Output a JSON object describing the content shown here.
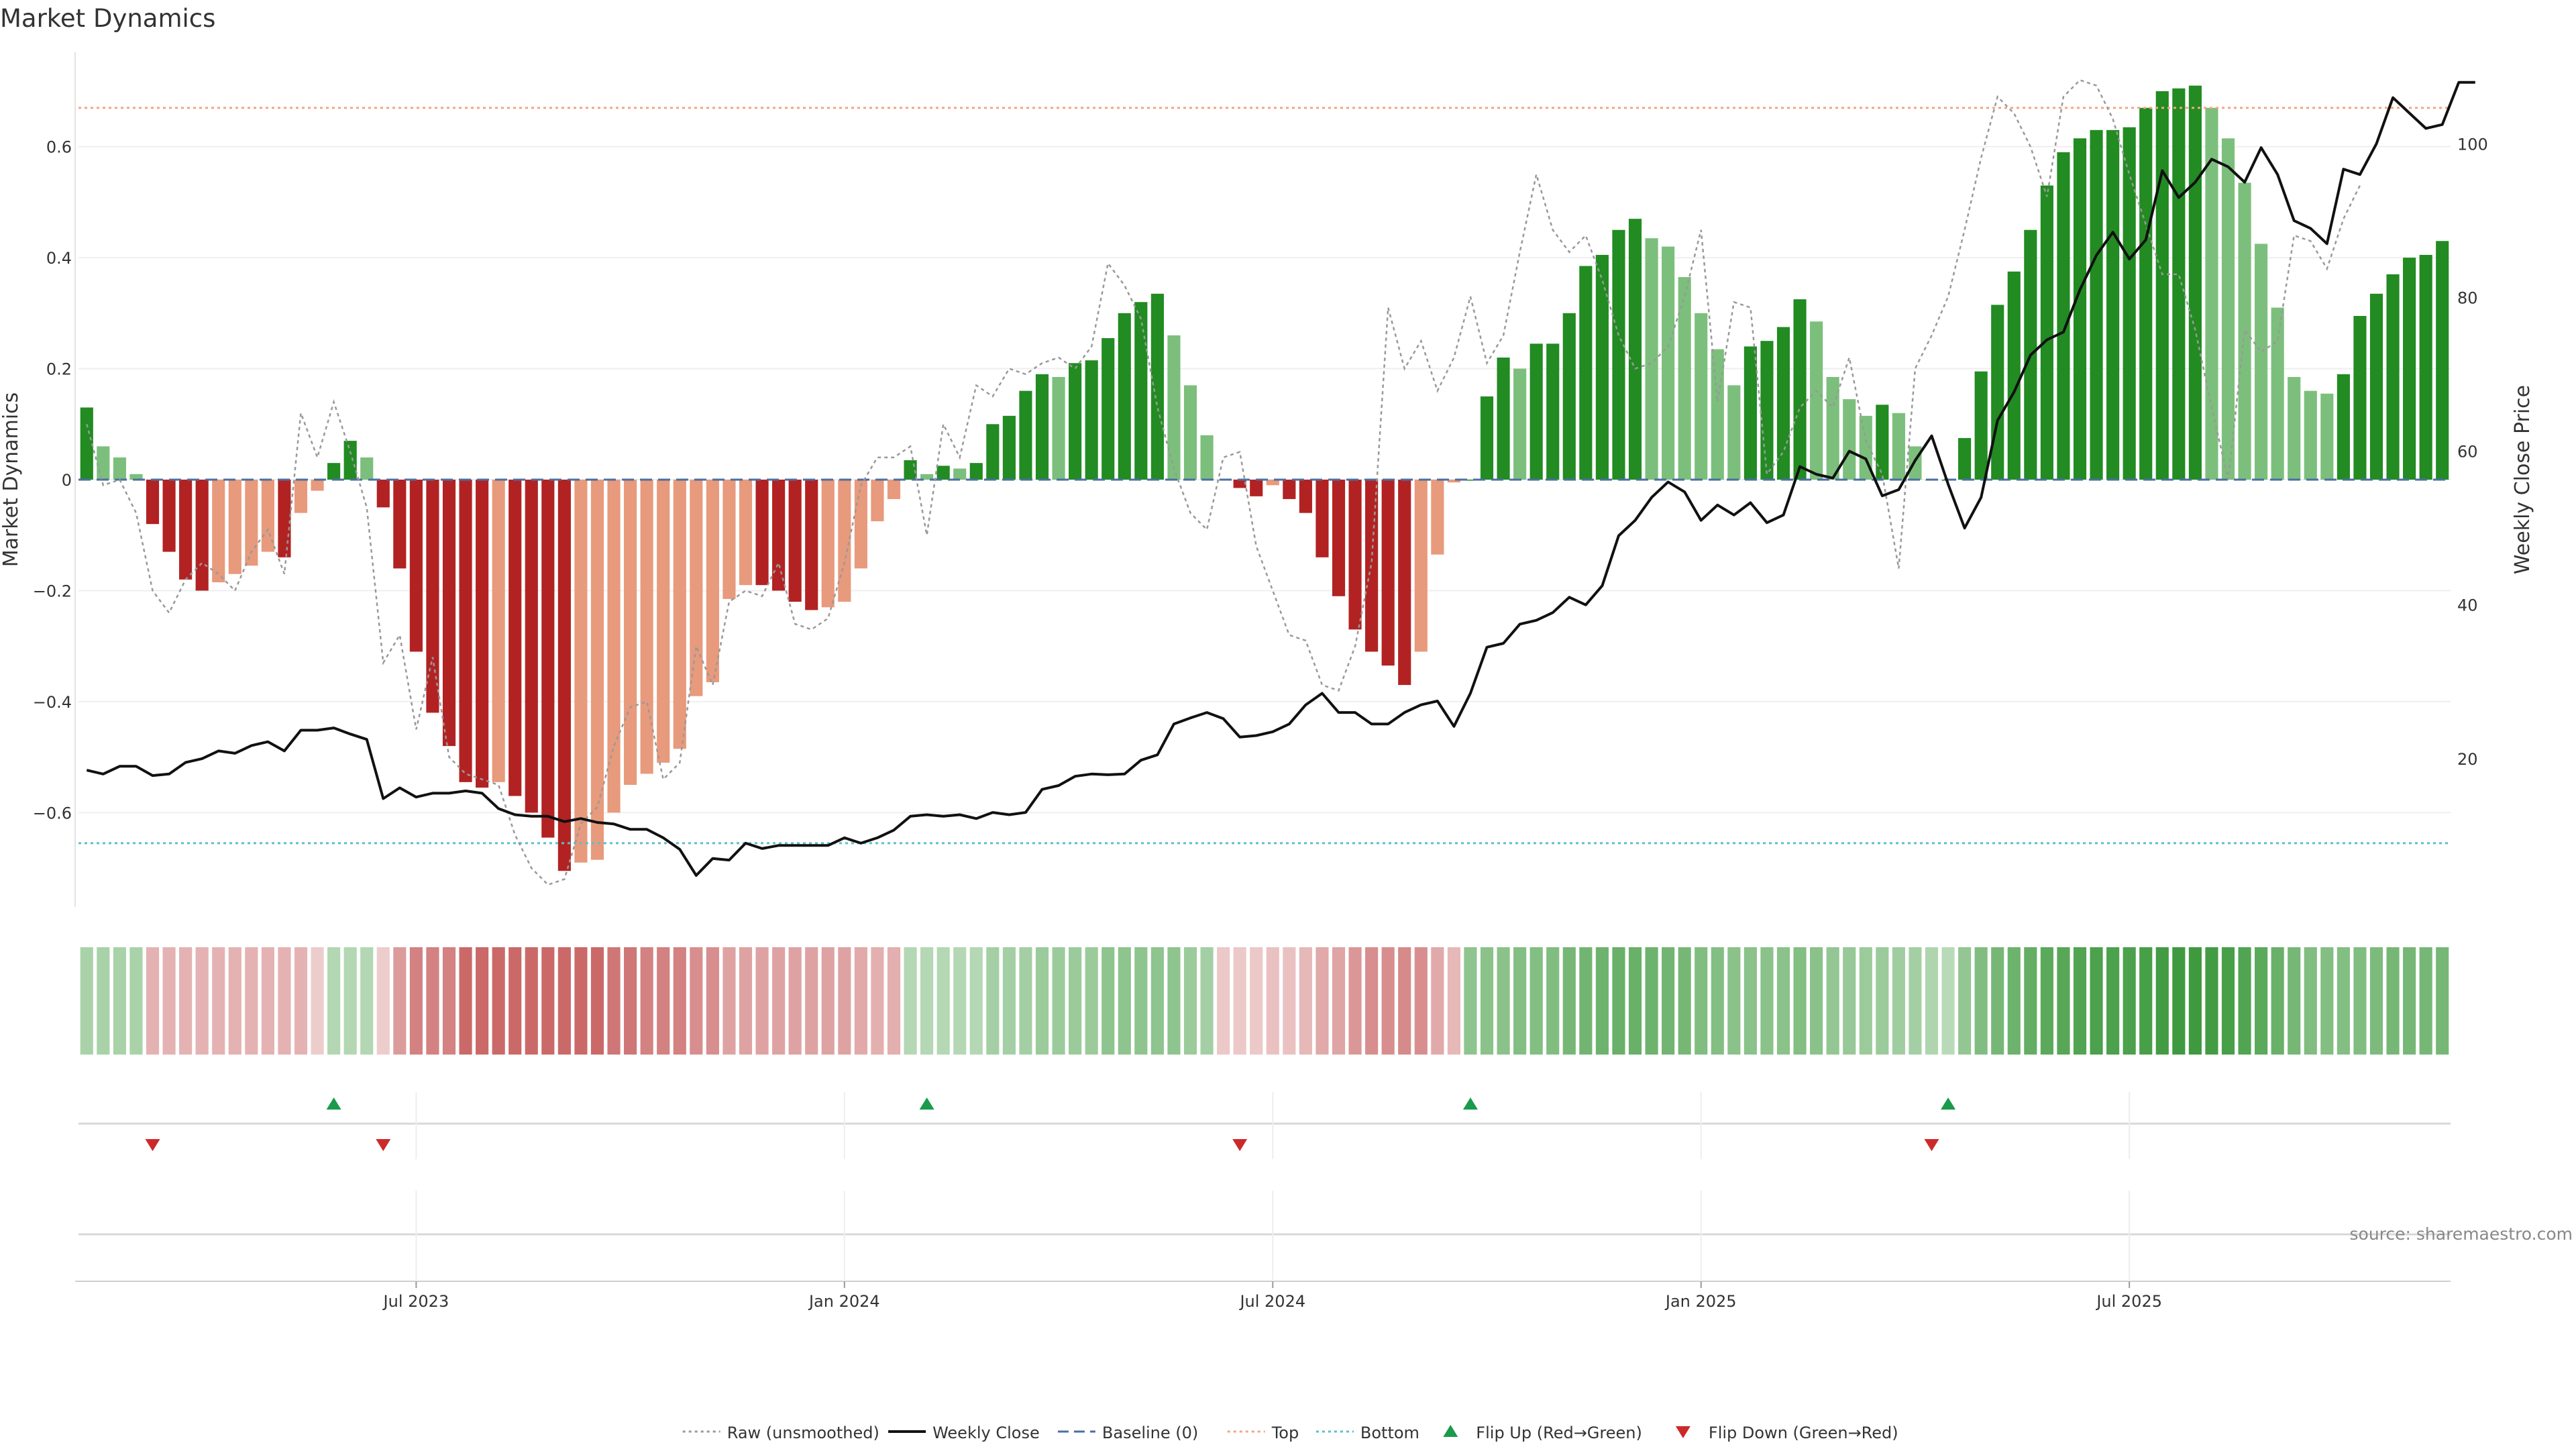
{
  "chart_data": {
    "type": "bar",
    "title": "Market Dynamics",
    "ylabel_left": "Market Dynamics",
    "ylabel_right": "Weekly Close Price",
    "source": "source: sharemaestro.com",
    "y_left_range": [
      -0.77,
      0.77
    ],
    "y_left_ticks": [
      {
        "v": 0.6,
        "label": "0.6"
      },
      {
        "v": 0.4,
        "label": "0.4"
      },
      {
        "v": 0.2,
        "label": "0.2"
      },
      {
        "v": 0,
        "label": "0"
      },
      {
        "v": -0.2,
        "label": "−0.2"
      },
      {
        "v": -0.4,
        "label": "−0.4"
      },
      {
        "v": -0.6,
        "label": "−0.6"
      }
    ],
    "y_right_range": [
      0.7,
      111.9
    ],
    "y_right_ticks": [
      {
        "v": 100,
        "label": "100"
      },
      {
        "v": 80,
        "label": "80"
      },
      {
        "v": 60,
        "label": "60"
      },
      {
        "v": 40,
        "label": "40"
      },
      {
        "v": 20,
        "label": "20"
      }
    ],
    "x_ticks": [
      {
        "index": 20,
        "label": "Jul 2023"
      },
      {
        "index": 46,
        "label": "Jan 2024"
      },
      {
        "index": 72,
        "label": "Jul 2024"
      },
      {
        "index": 98,
        "label": "Jan 2025"
      },
      {
        "index": 124,
        "label": "Jul 2025"
      }
    ],
    "top_level": 0.67,
    "bottom_level": -0.655,
    "series": [
      {
        "name": "Market Dynamics",
        "values": [
          0.13,
          0.06,
          0.04,
          0.01,
          -0.08,
          -0.13,
          -0.18,
          -0.2,
          -0.185,
          -0.17,
          -0.155,
          -0.13,
          -0.14,
          -0.06,
          -0.02,
          0.03,
          0.07,
          0.04,
          -0.05,
          -0.16,
          -0.31,
          -0.42,
          -0.48,
          -0.545,
          -0.555,
          -0.545,
          -0.57,
          -0.6,
          -0.645,
          -0.705,
          -0.69,
          -0.685,
          -0.6,
          -0.55,
          -0.53,
          -0.51,
          -0.485,
          -0.39,
          -0.365,
          -0.215,
          -0.19,
          -0.19,
          -0.2,
          -0.22,
          -0.235,
          -0.23,
          -0.22,
          -0.16,
          -0.075,
          -0.035,
          0.035,
          0.01,
          0.025,
          0.02,
          0.03,
          0.1,
          0.115,
          0.16,
          0.19,
          0.185,
          0.21,
          0.215,
          0.255,
          0.3,
          0.32,
          0.335,
          0.26,
          0.17,
          0.08,
          0.0,
          -0.015,
          -0.03,
          -0.01,
          -0.035,
          -0.06,
          -0.14,
          -0.21,
          -0.27,
          -0.31,
          -0.335,
          -0.37,
          -0.31,
          -0.135,
          -0.005,
          0.0,
          0.15,
          0.22,
          0.2,
          0.245,
          0.245,
          0.3,
          0.385,
          0.405,
          0.45,
          0.47,
          0.435,
          0.42,
          0.365,
          0.3,
          0.235,
          0.17,
          0.24,
          0.25,
          0.275,
          0.325,
          0.285,
          0.185,
          0.145,
          0.115,
          0.135,
          0.12,
          0.06,
          0.0,
          0.0,
          0.075,
          0.195,
          0.315,
          0.375,
          0.45,
          0.53,
          0.59,
          0.615,
          0.63,
          0.63,
          0.635,
          0.67,
          0.7,
          0.705,
          0.71,
          0.67,
          0.615,
          0.535,
          0.425,
          0.31,
          0.185,
          0.16,
          0.155,
          0.19,
          0.295,
          0.335,
          0.37,
          0.4,
          0.405,
          0.43
        ]
      },
      {
        "name": "Raw (unsmoothed)",
        "values": [
          0.1,
          -0.01,
          0.0,
          -0.06,
          -0.2,
          -0.24,
          -0.18,
          -0.15,
          -0.17,
          -0.2,
          -0.13,
          -0.09,
          -0.17,
          0.12,
          0.04,
          0.14,
          0.05,
          -0.05,
          -0.33,
          -0.28,
          -0.45,
          -0.32,
          -0.5,
          -0.53,
          -0.54,
          -0.55,
          -0.64,
          -0.7,
          -0.73,
          -0.72,
          -0.62,
          -0.59,
          -0.48,
          -0.41,
          -0.4,
          -0.54,
          -0.51,
          -0.3,
          -0.37,
          -0.22,
          -0.2,
          -0.21,
          -0.15,
          -0.26,
          -0.27,
          -0.25,
          -0.15,
          -0.01,
          0.04,
          0.04,
          0.06,
          -0.1,
          0.1,
          0.04,
          0.17,
          0.15,
          0.2,
          0.19,
          0.21,
          0.22,
          0.2,
          0.24,
          0.39,
          0.35,
          0.29,
          0.13,
          0.02,
          -0.06,
          -0.09,
          0.04,
          0.05,
          -0.12,
          -0.2,
          -0.28,
          -0.29,
          -0.37,
          -0.38,
          -0.3,
          -0.15,
          0.31,
          0.2,
          0.25,
          0.16,
          0.22,
          0.33,
          0.21,
          0.26,
          0.41,
          0.55,
          0.45,
          0.41,
          0.44,
          0.36,
          0.26,
          0.2,
          0.21,
          0.24,
          0.33,
          0.45,
          0.14,
          0.32,
          0.31,
          0.01,
          0.05,
          0.13,
          0.16,
          0.13,
          0.22,
          0.07,
          0.01,
          -0.16,
          0.2,
          0.26,
          0.33,
          0.45,
          0.58,
          0.69,
          0.66,
          0.6,
          0.51,
          0.69,
          0.72,
          0.71,
          0.65,
          0.55,
          0.46,
          0.37,
          0.37,
          0.27,
          0.13,
          0.0,
          0.27,
          0.23,
          0.25,
          0.44,
          0.43,
          0.38,
          0.47,
          0.53
        ]
      },
      {
        "name": "Weekly Close",
        "values": [
          18.5,
          18.0,
          19.0,
          19.0,
          17.8,
          18.0,
          19.5,
          20.0,
          21.0,
          20.7,
          21.7,
          22.2,
          21.0,
          23.7,
          23.7,
          24.0,
          23.2,
          22.5,
          14.8,
          16.2,
          15.0,
          15.5,
          15.5,
          15.8,
          15.5,
          13.5,
          12.7,
          12.5,
          12.5,
          11.8,
          12.2,
          11.7,
          11.5,
          10.8,
          10.8,
          9.7,
          8.2,
          4.8,
          7.0,
          6.8,
          9.0,
          8.3,
          8.7,
          8.7,
          8.7,
          8.7,
          9.7,
          9.0,
          9.7,
          10.7,
          12.5,
          12.7,
          12.5,
          12.7,
          12.2,
          13.0,
          12.7,
          13.0,
          16.0,
          16.5,
          17.7,
          18.0,
          17.9,
          18.0,
          19.8,
          20.5,
          24.5,
          25.3,
          26.0,
          25.2,
          22.8,
          23.0,
          23.5,
          24.5,
          27.0,
          28.5,
          26.0,
          26.0,
          24.5,
          24.5,
          26.0,
          27.0,
          27.5,
          24.2,
          28.5,
          34.5,
          35.0,
          37.5,
          38.0,
          39.0,
          41.0,
          40.0,
          42.5,
          49.0,
          51.0,
          54.0,
          56.0,
          54.7,
          51.0,
          53.0,
          51.7,
          53.3,
          50.7,
          51.7,
          58.0,
          57.0,
          56.5,
          60.0,
          59.0,
          54.2,
          55.0,
          58.8,
          62.0,
          55.7,
          50.0,
          54.0,
          64.0,
          67.7,
          72.5,
          74.5,
          75.5,
          81.0,
          85.5,
          88.5,
          85.0,
          87.5,
          96.5,
          93.0,
          95.0,
          98.0,
          97.0,
          95.0,
          99.5,
          96.0,
          90.0,
          89.0,
          87.0,
          96.7,
          96.0,
          100.0,
          106.0,
          104.0,
          102.0,
          102.5,
          108.0,
          108.0
        ]
      }
    ],
    "regime_strip": [
      0.28,
      0.28,
      0.28,
      0.28,
      -0.23,
      -0.23,
      -0.23,
      -0.23,
      -0.23,
      -0.23,
      -0.23,
      -0.23,
      -0.23,
      -0.23,
      -0.1,
      0.23,
      0.23,
      0.23,
      -0.1,
      -0.35,
      -0.5,
      -0.5,
      -0.5,
      -0.62,
      -0.62,
      -0.62,
      -0.62,
      -0.62,
      -0.62,
      -0.62,
      -0.62,
      -0.62,
      -0.55,
      -0.55,
      -0.5,
      -0.5,
      -0.5,
      -0.42,
      -0.42,
      -0.32,
      -0.32,
      -0.32,
      -0.32,
      -0.32,
      -0.32,
      -0.32,
      -0.32,
      -0.28,
      -0.25,
      -0.25,
      0.22,
      0.22,
      0.22,
      0.22,
      0.22,
      0.3,
      0.3,
      0.3,
      0.35,
      0.35,
      0.35,
      0.35,
      0.42,
      0.42,
      0.42,
      0.42,
      0.42,
      0.35,
      0.3,
      -0.12,
      -0.12,
      -0.12,
      -0.15,
      -0.15,
      -0.2,
      -0.28,
      -0.3,
      -0.38,
      -0.42,
      -0.42,
      -0.45,
      -0.42,
      -0.28,
      -0.2,
      0.42,
      0.45,
      0.45,
      0.48,
      0.48,
      0.5,
      0.55,
      0.58,
      0.6,
      0.62,
      0.62,
      0.6,
      0.58,
      0.55,
      0.5,
      0.48,
      0.45,
      0.45,
      0.45,
      0.45,
      0.48,
      0.45,
      0.4,
      0.38,
      0.35,
      0.35,
      0.33,
      0.3,
      0.25,
      0.2,
      0.4,
      0.5,
      0.55,
      0.6,
      0.65,
      0.7,
      0.72,
      0.75,
      0.78,
      0.78,
      0.78,
      0.8,
      0.82,
      0.85,
      0.85,
      0.82,
      0.8,
      0.75,
      0.7,
      0.62,
      0.55,
      0.5,
      0.48,
      0.48,
      0.5,
      0.52,
      0.55,
      0.55,
      0.55,
      0.55
    ],
    "flip_up_index": [
      15,
      51,
      84,
      113
    ],
    "flip_down_index": [
      4,
      18,
      70,
      112
    ],
    "legend": [
      {
        "label": "Raw (unsmoothed)",
        "kind": "dotted",
        "color": "#999999"
      },
      {
        "label": "Weekly Close",
        "kind": "solid",
        "color": "#111111"
      },
      {
        "label": "Baseline (0)",
        "kind": "dashed",
        "color": "#4a6fa5"
      },
      {
        "label": "Top",
        "kind": "dotted",
        "color": "#f4a582"
      },
      {
        "label": "Bottom",
        "kind": "dotted",
        "color": "#5bc0c7"
      },
      {
        "label": "Flip Up (Red→Green)",
        "kind": "tri-up",
        "color": "#1a9a4a"
      },
      {
        "label": "Flip Down (Green→Red)",
        "kind": "tri-down",
        "color": "#cc2a2a"
      }
    ],
    "colors": {
      "green_strong": "#228b22",
      "green_weak": "#7cbf7c",
      "red_strong": "#b22222",
      "red_weak": "#e89a7c",
      "flip_up": "#1a9a4a",
      "flip_down": "#cc2a2a"
    }
  }
}
